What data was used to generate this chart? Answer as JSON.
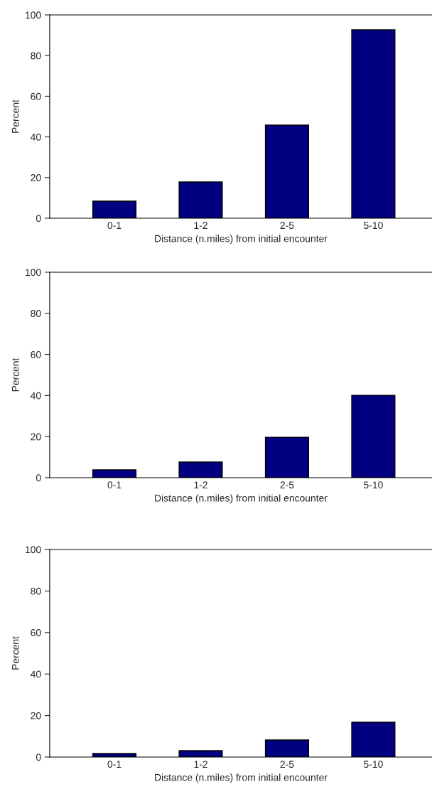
{
  "chart_data": [
    {
      "type": "bar",
      "categories": [
        "0-1",
        "1-2",
        "2-5",
        "5-10"
      ],
      "values": [
        8.4,
        17.8,
        45.8,
        92.7
      ],
      "color": "#000080",
      "ylim": [
        0,
        100
      ],
      "yticks": [
        0,
        20,
        40,
        60,
        80,
        100
      ],
      "xlabel": "Distance (n.miles) from initial encounter",
      "ylabel": "Percent"
    },
    {
      "type": "bar",
      "categories": [
        "0-1",
        "1-2",
        "2-5",
        "5-10"
      ],
      "values": [
        3.8,
        7.6,
        19.7,
        40.1
      ],
      "color": "#000080",
      "ylim": [
        0,
        100
      ],
      "yticks": [
        0,
        20,
        40,
        60,
        80,
        100
      ],
      "xlabel": "Distance (n.miles) from initial encounter",
      "ylabel": "Percent"
    },
    {
      "type": "bar",
      "categories": [
        "0-1",
        "1-2",
        "2-5",
        "5-10"
      ],
      "values": [
        1.7,
        3.1,
        8.2,
        16.8
      ],
      "color": "#000080",
      "ylim": [
        0,
        100
      ],
      "yticks": [
        0,
        20,
        40,
        60,
        80,
        100
      ],
      "xlabel": "Distance (n.miles) from initial encounter",
      "ylabel": "Percent"
    }
  ]
}
